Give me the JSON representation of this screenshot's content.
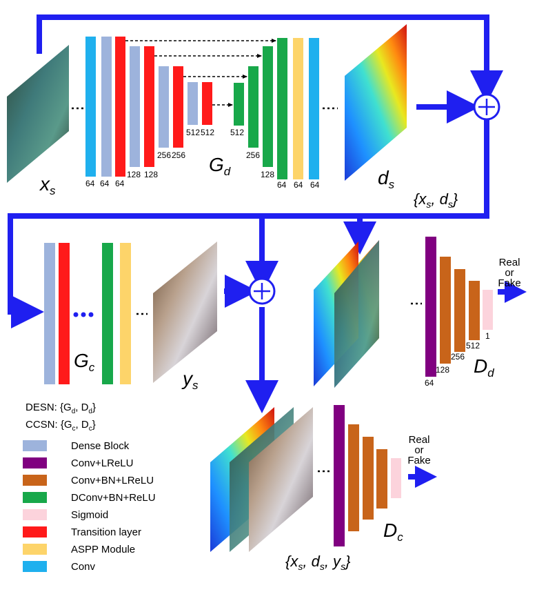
{
  "colors": {
    "arrow": "#1f1ff0",
    "dense_block": "#9db3dc",
    "conv_lrelu": "#800080",
    "conv_bn_lrelu": "#c8641a",
    "dconv_bn_relu": "#18a84a",
    "sigmoid": "#fcd3dc",
    "transition": "#ff1a1a",
    "aspp": "#fdd46a",
    "conv": "#1fb0ee"
  },
  "symbols": {
    "xs": "x",
    "xs_sub": "s",
    "gd": "G",
    "gd_sub": "d",
    "ds": "d",
    "ds_sub": "s",
    "pair": "{xs, ds}",
    "gc": "G",
    "gc_sub": "c",
    "ys": "y",
    "ys_sub": "s",
    "dd": "D",
    "dd_sub": "d",
    "dc": "D",
    "dc_sub": "c",
    "triple": "{xs, ds, ys}",
    "plus": "+"
  },
  "gd_channels": [
    "64",
    "64",
    "64",
    "128",
    "128",
    "256",
    "256",
    "512",
    "512",
    "512",
    "256",
    "128",
    "64",
    "64",
    "64"
  ],
  "dd_channels": [
    "64",
    "128",
    "256",
    "512",
    "1"
  ],
  "real_or_fake": [
    "Real",
    "or",
    "Fake"
  ],
  "networks": {
    "desn": "DESN: {Gd, Dd}",
    "ccsn": "CCSN: {Gc, Dc}"
  },
  "legend": [
    {
      "label": "Dense Block",
      "color": "#9db3dc"
    },
    {
      "label": "Conv+LReLU",
      "color": "#800080"
    },
    {
      "label": "Conv+BN+LReLU",
      "color": "#c8641a"
    },
    {
      "label": "DConv+BN+ReLU",
      "color": "#18a84a"
    },
    {
      "label": "Sigmoid",
      "color": "#fcd3dc"
    },
    {
      "label": "Transition layer",
      "color": "#ff1a1a"
    },
    {
      "label": "ASPP Module",
      "color": "#fdd46a"
    },
    {
      "label": "Conv",
      "color": "#1fb0ee"
    }
  ],
  "dots": "..."
}
